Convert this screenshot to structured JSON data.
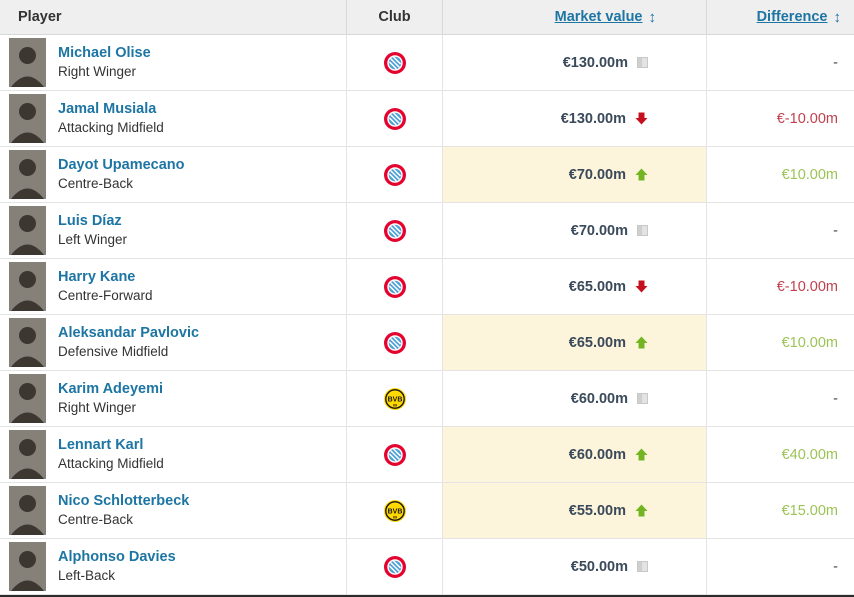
{
  "colors": {
    "accent": "#1d75a3",
    "value_text": "#3b4a5a",
    "up": "#72b421",
    "down": "#c4101f",
    "diff_up": "#9cc355",
    "diff_down": "#c2404e",
    "diff_same": "#474747",
    "highlight": "#fdf4dc",
    "header_bg": "#efefef",
    "border": "#e4e4e4"
  },
  "table": {
    "columns": {
      "player": "Player",
      "club": "Club",
      "market_value": "Market value",
      "difference": "Difference"
    },
    "sort_glyph": "↕",
    "icons": {
      "up": "trend-up-icon",
      "down": "trend-down-icon",
      "same": "no-change-icon",
      "sort": "sort-icon",
      "bayern": "bayern-munich-club-badge",
      "dortmund": "borussia-dortmund-club-badge"
    },
    "rows": [
      {
        "name": "Michael Olise",
        "position": "Right Winger",
        "club": "bayern",
        "club_name": "Bayern Munich",
        "market_value": "€130.00m",
        "trend": "same",
        "difference": "-"
      },
      {
        "name": "Jamal Musiala",
        "position": "Attacking Midfield",
        "club": "bayern",
        "club_name": "Bayern Munich",
        "market_value": "€130.00m",
        "trend": "down",
        "difference": "€-10.00m"
      },
      {
        "name": "Dayot Upamecano",
        "position": "Centre-Back",
        "club": "bayern",
        "club_name": "Bayern Munich",
        "market_value": "€70.00m",
        "trend": "up",
        "difference": "€10.00m"
      },
      {
        "name": "Luis Díaz",
        "position": "Left Winger",
        "club": "bayern",
        "club_name": "Bayern Munich",
        "market_value": "€70.00m",
        "trend": "same",
        "difference": "-"
      },
      {
        "name": "Harry Kane",
        "position": "Centre-Forward",
        "club": "bayern",
        "club_name": "Bayern Munich",
        "market_value": "€65.00m",
        "trend": "down",
        "difference": "€-10.00m"
      },
      {
        "name": "Aleksandar Pavlovic",
        "position": "Defensive Midfield",
        "club": "bayern",
        "club_name": "Bayern Munich",
        "market_value": "€65.00m",
        "trend": "up",
        "difference": "€10.00m"
      },
      {
        "name": "Karim Adeyemi",
        "position": "Right Winger",
        "club": "dortmund",
        "club_name": "Borussia Dortmund",
        "market_value": "€60.00m",
        "trend": "same",
        "difference": "-"
      },
      {
        "name": "Lennart Karl",
        "position": "Attacking Midfield",
        "club": "bayern",
        "club_name": "Bayern Munich",
        "market_value": "€60.00m",
        "trend": "up",
        "difference": "€40.00m"
      },
      {
        "name": "Nico Schlotterbeck",
        "position": "Centre-Back",
        "club": "dortmund",
        "club_name": "Borussia Dortmund",
        "market_value": "€55.00m",
        "trend": "up",
        "difference": "€15.00m"
      },
      {
        "name": "Alphonso Davies",
        "position": "Left-Back",
        "club": "bayern",
        "club_name": "Bayern Munich",
        "market_value": "€50.00m",
        "trend": "same",
        "difference": "-"
      }
    ]
  }
}
